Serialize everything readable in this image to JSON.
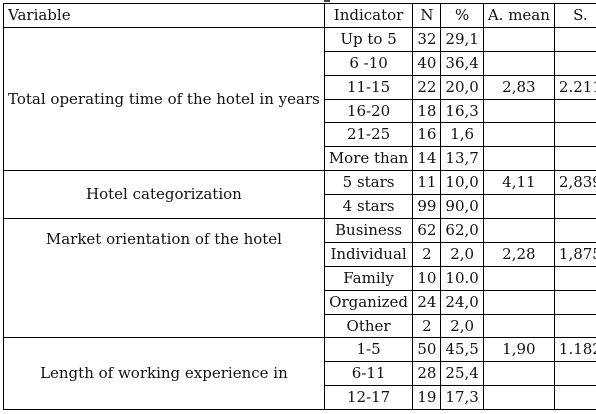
{
  "headers": [
    "Variable",
    "Indicator",
    "N",
    "%",
    "A. mean",
    "S."
  ],
  "groups": [
    {
      "variable": "Total operating time of the hotel in years",
      "mean": "2,83",
      "sd": "2.211",
      "rows": [
        {
          "indicator": "Up to 5",
          "n": "32",
          "pct": "29,1"
        },
        {
          "indicator": "6 -10",
          "n": "40",
          "pct": "36,4"
        },
        {
          "indicator": "11-15",
          "n": "22",
          "pct": "20,0"
        },
        {
          "indicator": "16-20",
          "n": "18",
          "pct": "16,3"
        },
        {
          "indicator": "21-25",
          "n": "16",
          "pct": "1,6"
        },
        {
          "indicator": "More than",
          "n": "14",
          "pct": "13,7"
        }
      ]
    },
    {
      "variable": "Hotel categorization",
      "mean": "4,11",
      "sd": "2,839",
      "rows": [
        {
          "indicator": "5 stars",
          "n": "11",
          "pct": "10,0"
        },
        {
          "indicator": "4 stars",
          "n": "99",
          "pct": "90,0"
        }
      ]
    },
    {
      "variable": "Market orientation of the hotel",
      "mean": "2,28",
      "sd": "1,875",
      "rows": [
        {
          "indicator": "Business",
          "n": "62",
          "pct": "62,0"
        },
        {
          "indicator": "Individual",
          "n": "2",
          "pct": "2,0"
        },
        {
          "indicator": "Family",
          "n": "10",
          "pct": "10.0"
        },
        {
          "indicator": "Organized",
          "n": "24",
          "pct": "24,0"
        },
        {
          "indicator": "Other",
          "n": "2",
          "pct": "2,0"
        }
      ]
    },
    {
      "variable": "Length of working experience in",
      "mean": "1,90",
      "sd": "1.182",
      "rows": [
        {
          "indicator": "1-5",
          "n": "50",
          "pct": "45,5"
        },
        {
          "indicator": "6-11",
          "n": "28",
          "pct": "25,4"
        },
        {
          "indicator": "12-17",
          "n": "19",
          "pct": "17,3"
        }
      ]
    }
  ]
}
